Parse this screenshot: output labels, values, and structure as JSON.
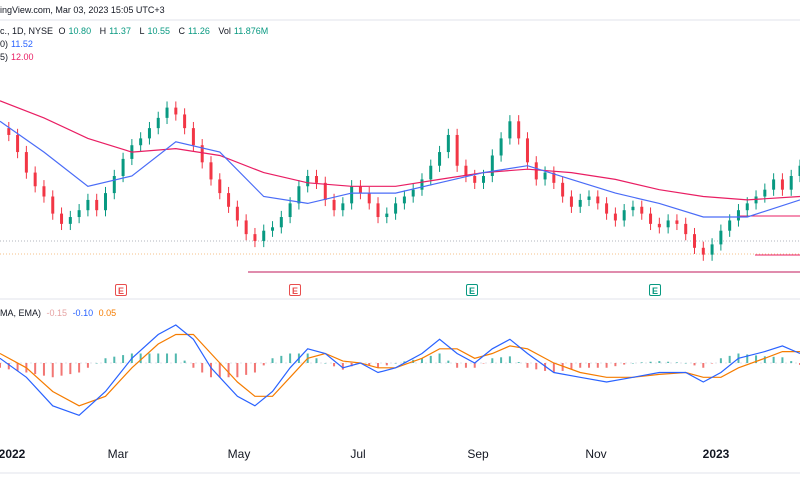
{
  "header": {
    "source": "ingView.com, Mar 03, 2023 15:05 UTC+3",
    "symbol": "c., 1D, NYSE",
    "o_label": "O",
    "o_value": "10.80",
    "h_label": "H",
    "h_value": "11.37",
    "l_label": "L",
    "l_value": "10.55",
    "c_label": "C",
    "c_value": "11.26",
    "vol_label": "Vol",
    "vol_value": "11.876M",
    "ma1_label": "0)",
    "ma1_value": "11.52",
    "ma2_label": "5)",
    "ma2_value": "12.00"
  },
  "macd_header": {
    "label": "MA, EMA)",
    "hist_value": "-0.15",
    "macd_value": "-0.10",
    "signal_value": "0.05"
  },
  "colors": {
    "up": "#089981",
    "down": "#f23645",
    "ma_fast": "#4a6cf7",
    "ma_slow": "#e91e63",
    "macd": "#2962ff",
    "signal": "#f57c00"
  },
  "earnings": [
    {
      "type": "red",
      "letter": "E",
      "date": "2022-02-22"
    },
    {
      "type": "red",
      "letter": "E",
      "date": "2022-05-10"
    },
    {
      "type": "green",
      "letter": "E",
      "date": "2022-08-09"
    },
    {
      "type": "green",
      "letter": "E",
      "date": "2022-11-08"
    }
  ],
  "x_axis": [
    {
      "label": "2022",
      "bold": true
    },
    {
      "label": "Mar",
      "bold": false
    },
    {
      "label": "May",
      "bold": false
    },
    {
      "label": "Jul",
      "bold": false
    },
    {
      "label": "Sep",
      "bold": false
    },
    {
      "label": "Nov",
      "bold": false
    },
    {
      "label": "2023",
      "bold": true
    }
  ],
  "chart_data": {
    "type": "line",
    "x_start": "2022-01",
    "x_end": "2023-03",
    "price_close": [
      [
        0,
        12.3
      ],
      [
        2,
        12.1
      ],
      [
        4,
        11.6
      ],
      [
        6,
        11.0
      ],
      [
        8,
        10.6
      ],
      [
        10,
        10.3
      ],
      [
        12,
        9.8
      ],
      [
        14,
        9.5
      ],
      [
        16,
        9.7
      ],
      [
        18,
        9.9
      ],
      [
        20,
        10.2
      ],
      [
        22,
        9.9
      ],
      [
        24,
        10.4
      ],
      [
        26,
        10.9
      ],
      [
        28,
        11.4
      ],
      [
        30,
        11.8
      ],
      [
        32,
        12.0
      ],
      [
        34,
        12.3
      ],
      [
        36,
        12.6
      ],
      [
        38,
        12.9
      ],
      [
        40,
        12.7
      ],
      [
        42,
        12.3
      ],
      [
        44,
        11.8
      ],
      [
        46,
        11.3
      ],
      [
        48,
        10.8
      ],
      [
        50,
        10.4
      ],
      [
        52,
        10.0
      ],
      [
        54,
        9.6
      ],
      [
        56,
        9.2
      ],
      [
        58,
        9.0
      ],
      [
        60,
        9.3
      ],
      [
        62,
        9.4
      ],
      [
        64,
        9.7
      ],
      [
        66,
        10.1
      ],
      [
        68,
        10.6
      ],
      [
        70,
        10.9
      ],
      [
        72,
        10.7
      ],
      [
        74,
        10.2
      ],
      [
        76,
        9.9
      ],
      [
        78,
        10.1
      ],
      [
        80,
        10.6
      ],
      [
        82,
        10.4
      ],
      [
        84,
        10.1
      ],
      [
        86,
        9.7
      ],
      [
        88,
        9.8
      ],
      [
        90,
        10.1
      ],
      [
        92,
        10.3
      ],
      [
        94,
        10.5
      ],
      [
        96,
        10.8
      ],
      [
        98,
        11.2
      ],
      [
        100,
        11.6
      ],
      [
        102,
        12.1
      ],
      [
        104,
        11.2
      ],
      [
        106,
        10.9
      ],
      [
        108,
        10.7
      ],
      [
        110,
        10.9
      ],
      [
        112,
        11.5
      ],
      [
        114,
        12.0
      ],
      [
        116,
        12.5
      ],
      [
        118,
        12.0
      ],
      [
        120,
        11.3
      ],
      [
        122,
        10.8
      ],
      [
        124,
        11.0
      ],
      [
        126,
        10.7
      ],
      [
        128,
        10.3
      ],
      [
        130,
        10.0
      ],
      [
        132,
        10.2
      ],
      [
        134,
        10.3
      ],
      [
        136,
        10.1
      ],
      [
        138,
        9.8
      ],
      [
        140,
        9.6
      ],
      [
        142,
        9.9
      ],
      [
        144,
        10.0
      ],
      [
        146,
        9.8
      ],
      [
        148,
        9.5
      ],
      [
        150,
        9.4
      ],
      [
        152,
        9.6
      ],
      [
        154,
        9.5
      ],
      [
        156,
        9.2
      ],
      [
        158,
        8.8
      ],
      [
        160,
        8.6
      ],
      [
        162,
        8.9
      ],
      [
        164,
        9.3
      ],
      [
        166,
        9.6
      ],
      [
        168,
        9.9
      ],
      [
        170,
        10.1
      ],
      [
        172,
        10.3
      ],
      [
        174,
        10.5
      ],
      [
        176,
        10.8
      ],
      [
        178,
        10.5
      ],
      [
        180,
        10.9
      ],
      [
        182,
        11.2
      ]
    ],
    "ma_fast": [
      [
        0,
        12.5
      ],
      [
        10,
        11.6
      ],
      [
        20,
        10.6
      ],
      [
        30,
        10.9
      ],
      [
        40,
        11.9
      ],
      [
        50,
        11.6
      ],
      [
        60,
        10.3
      ],
      [
        70,
        10.1
      ],
      [
        80,
        10.4
      ],
      [
        90,
        10.4
      ],
      [
        100,
        10.7
      ],
      [
        110,
        11.0
      ],
      [
        120,
        11.2
      ],
      [
        130,
        10.8
      ],
      [
        140,
        10.4
      ],
      [
        150,
        10.1
      ],
      [
        160,
        9.7
      ],
      [
        170,
        9.7
      ],
      [
        182,
        10.2
      ]
    ],
    "ma_slow": [
      [
        0,
        13.1
      ],
      [
        10,
        12.6
      ],
      [
        20,
        12.0
      ],
      [
        30,
        11.6
      ],
      [
        40,
        11.7
      ],
      [
        50,
        11.5
      ],
      [
        60,
        11.0
      ],
      [
        70,
        10.7
      ],
      [
        80,
        10.6
      ],
      [
        90,
        10.6
      ],
      [
        100,
        10.8
      ],
      [
        110,
        11.0
      ],
      [
        120,
        11.1
      ],
      [
        130,
        11.0
      ],
      [
        140,
        10.8
      ],
      [
        150,
        10.5
      ],
      [
        160,
        10.3
      ],
      [
        170,
        10.2
      ],
      [
        182,
        10.3
      ]
    ],
    "macd": [
      [
        0,
        0.05
      ],
      [
        6,
        -0.15
      ],
      [
        12,
        -0.45
      ],
      [
        18,
        -0.55
      ],
      [
        24,
        -0.3
      ],
      [
        30,
        0.05
      ],
      [
        36,
        0.3
      ],
      [
        40,
        0.4
      ],
      [
        44,
        0.25
      ],
      [
        48,
        -0.05
      ],
      [
        54,
        -0.35
      ],
      [
        58,
        -0.45
      ],
      [
        62,
        -0.3
      ],
      [
        66,
        -0.05
      ],
      [
        70,
        0.15
      ],
      [
        74,
        0.1
      ],
      [
        78,
        -0.05
      ],
      [
        82,
        0.0
      ],
      [
        86,
        -0.1
      ],
      [
        90,
        -0.05
      ],
      [
        96,
        0.1
      ],
      [
        100,
        0.25
      ],
      [
        104,
        0.1
      ],
      [
        108,
        0.0
      ],
      [
        112,
        0.15
      ],
      [
        116,
        0.25
      ],
      [
        120,
        0.1
      ],
      [
        126,
        -0.1
      ],
      [
        132,
        -0.15
      ],
      [
        138,
        -0.2
      ],
      [
        144,
        -0.15
      ],
      [
        150,
        -0.1
      ],
      [
        156,
        -0.1
      ],
      [
        160,
        -0.2
      ],
      [
        164,
        -0.1
      ],
      [
        168,
        0.05
      ],
      [
        174,
        0.12
      ],
      [
        178,
        0.18
      ],
      [
        182,
        0.1
      ]
    ],
    "signal": [
      [
        0,
        0.1
      ],
      [
        6,
        -0.05
      ],
      [
        12,
        -0.3
      ],
      [
        18,
        -0.45
      ],
      [
        24,
        -0.35
      ],
      [
        30,
        -0.05
      ],
      [
        36,
        0.2
      ],
      [
        40,
        0.3
      ],
      [
        44,
        0.3
      ],
      [
        48,
        0.1
      ],
      [
        54,
        -0.2
      ],
      [
        58,
        -0.35
      ],
      [
        62,
        -0.35
      ],
      [
        66,
        -0.15
      ],
      [
        70,
        0.05
      ],
      [
        74,
        0.1
      ],
      [
        78,
        0.02
      ],
      [
        82,
        0.0
      ],
      [
        86,
        -0.05
      ],
      [
        90,
        -0.05
      ],
      [
        96,
        0.05
      ],
      [
        100,
        0.15
      ],
      [
        104,
        0.15
      ],
      [
        108,
        0.05
      ],
      [
        112,
        0.1
      ],
      [
        116,
        0.18
      ],
      [
        120,
        0.15
      ],
      [
        126,
        0.0
      ],
      [
        132,
        -0.1
      ],
      [
        138,
        -0.15
      ],
      [
        144,
        -0.15
      ],
      [
        150,
        -0.12
      ],
      [
        156,
        -0.1
      ],
      [
        160,
        -0.15
      ],
      [
        164,
        -0.15
      ],
      [
        168,
        -0.05
      ],
      [
        174,
        0.05
      ],
      [
        178,
        0.12
      ],
      [
        182,
        0.12
      ]
    ]
  }
}
